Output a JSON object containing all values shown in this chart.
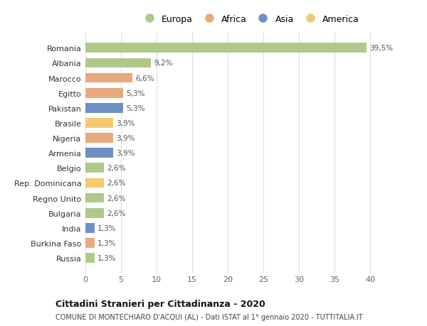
{
  "countries": [
    "Romania",
    "Albania",
    "Marocco",
    "Egitto",
    "Pakistan",
    "Brasile",
    "Nigeria",
    "Armenia",
    "Belgio",
    "Rep. Dominicana",
    "Regno Unito",
    "Bulgaria",
    "India",
    "Burkina Faso",
    "Russia"
  ],
  "values": [
    39.5,
    9.2,
    6.6,
    5.3,
    5.3,
    3.9,
    3.9,
    3.9,
    2.6,
    2.6,
    2.6,
    2.6,
    1.3,
    1.3,
    1.3
  ],
  "labels": [
    "39,5%",
    "9,2%",
    "6,6%",
    "5,3%",
    "5,3%",
    "3,9%",
    "3,9%",
    "3,9%",
    "2,6%",
    "2,6%",
    "2,6%",
    "2,6%",
    "1,3%",
    "1,3%",
    "1,3%"
  ],
  "colors": [
    "#aec98a",
    "#aec98a",
    "#e8a97e",
    "#e8a97e",
    "#6e8fc4",
    "#f5c96e",
    "#e8a97e",
    "#6e8fc4",
    "#aec98a",
    "#f5c96e",
    "#aec98a",
    "#aec98a",
    "#6e8fc4",
    "#e8a97e",
    "#aec98a"
  ],
  "legend_labels": [
    "Europa",
    "Africa",
    "Asia",
    "America"
  ],
  "legend_colors": [
    "#aec98a",
    "#e8a97e",
    "#6e8fc4",
    "#f5c96e"
  ],
  "title": "Cittadini Stranieri per Cittadinanza - 2020",
  "subtitle": "COMUNE DI MONTECHIARO D'ACQUI (AL) - Dati ISTAT al 1° gennaio 2020 - TUTTITALIA.IT",
  "xlim": [
    0,
    42
  ],
  "xticks": [
    0,
    5,
    10,
    15,
    20,
    25,
    30,
    35,
    40
  ],
  "background_color": "#ffffff",
  "grid_color": "#e0e0e0"
}
